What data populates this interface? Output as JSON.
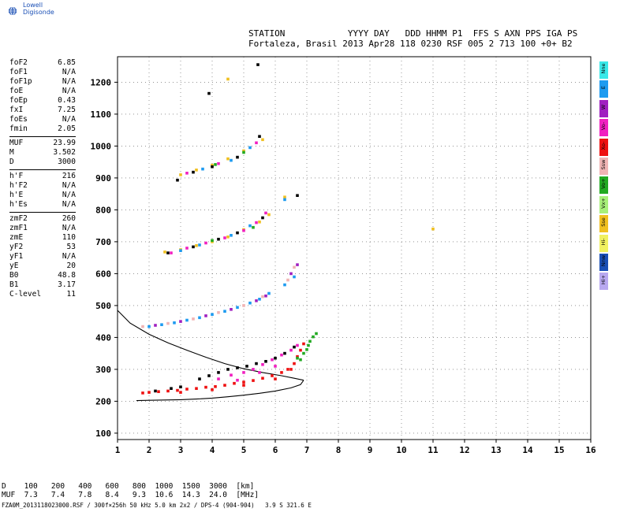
{
  "brand": {
    "name": "Lowell Digisonde",
    "logo_icon": "globe-icon"
  },
  "header": {
    "line1": "STATION            YYYY DAY   DDD HHMM P1  FFS S AXN PPS IGA PS",
    "line2": "Fortaleza, Brasil 2013 Apr28 118 0230 RSF 005 2 713 100 +0+ B2"
  },
  "params": {
    "groups": [
      [
        {
          "k": "foF2",
          "v": "6.85"
        },
        {
          "k": "foF1",
          "v": "N/A"
        },
        {
          "k": "foF1p",
          "v": "N/A"
        },
        {
          "k": "foE",
          "v": "N/A"
        },
        {
          "k": "foEp",
          "v": "0.43"
        },
        {
          "k": "fxI",
          "v": "7.25"
        },
        {
          "k": "foEs",
          "v": "N/A"
        },
        {
          "k": "fmin",
          "v": "2.05"
        }
      ],
      [
        {
          "k": "MUF",
          "v": "23.99"
        },
        {
          "k": "M",
          "v": "3.502"
        },
        {
          "k": "D",
          "v": "3000"
        }
      ],
      [
        {
          "k": "h'F",
          "v": "216"
        },
        {
          "k": "h'F2",
          "v": "N/A"
        },
        {
          "k": "h'E",
          "v": "N/A"
        },
        {
          "k": "h'Es",
          "v": "N/A"
        }
      ],
      [
        {
          "k": "zmF2",
          "v": "260"
        },
        {
          "k": "zmF1",
          "v": "N/A"
        },
        {
          "k": "zmE",
          "v": "110"
        },
        {
          "k": "yF2",
          "v": "53"
        },
        {
          "k": "yF1",
          "v": "N/A"
        },
        {
          "k": "yE",
          "v": "20"
        },
        {
          "k": "B0",
          "v": "48.8"
        },
        {
          "k": "B1",
          "v": "3.17"
        },
        {
          "k": "C-level",
          "v": "11"
        }
      ]
    ]
  },
  "legend": [
    {
      "label": "Nne",
      "color": "#39e8e8"
    },
    {
      "label": "E",
      "color": "#1d9bf0"
    },
    {
      "label": "W",
      "color": "#a020c0"
    },
    {
      "label": "Vo-",
      "color": "#f020c0"
    },
    {
      "label": "Xo-",
      "color": "#ee1111"
    },
    {
      "label": "Ssw",
      "color": "#f0b4b4"
    },
    {
      "label": "Vo+",
      "color": "#22aa22"
    },
    {
      "label": "Vx+",
      "color": "#a8f07a"
    },
    {
      "label": "Sse",
      "color": "#f0c020"
    },
    {
      "label": "Hi-",
      "color": "#f0f060"
    },
    {
      "label": "Nnw",
      "color": "#1a4fb5"
    },
    {
      "label": "Hi+",
      "color": "#b8a8f0"
    }
  ],
  "muf_table": {
    "line1": "D    100   200   400   600   800  1000  1500  3000  [km]",
    "line2": "MUF  7.3   7.4   7.8   8.4   9.3  10.6  14.3  24.0  [MHz]"
  },
  "footer": "FZA0M_2013118023000.RSF / 300f×256h 50 kHz 5.0 km 2x2 / DPS-4 (904-904)   3.9 S 321.6 E",
  "chart_data": {
    "type": "scatter",
    "xlim": [
      1,
      16
    ],
    "ylim": [
      80,
      1280
    ],
    "xticks": [
      1,
      2,
      3,
      4,
      5,
      6,
      7,
      8,
      9,
      10,
      11,
      12,
      13,
      14,
      15,
      16
    ],
    "yticks": [
      100,
      200,
      300,
      400,
      500,
      600,
      700,
      800,
      900,
      1000,
      1100,
      1200
    ],
    "grid": "dotted",
    "series": [
      {
        "color": "#ee1111",
        "points": [
          [
            1.8,
            226
          ],
          [
            2.0,
            228
          ],
          [
            2.3,
            230
          ],
          [
            2.6,
            232
          ],
          [
            2.9,
            234
          ],
          [
            3.2,
            238
          ],
          [
            3.5,
            240
          ],
          [
            3.8,
            244
          ],
          [
            4.1,
            246
          ],
          [
            4.4,
            250
          ],
          [
            4.7,
            256
          ],
          [
            5.0,
            260
          ],
          [
            5.3,
            265
          ],
          [
            5.6,
            272
          ],
          [
            5.9,
            280
          ],
          [
            6.2,
            290
          ],
          [
            6.4,
            300
          ],
          [
            6.6,
            318
          ],
          [
            6.7,
            340
          ],
          [
            6.8,
            360
          ],
          [
            6.9,
            380
          ],
          [
            3.0,
            228
          ],
          [
            4.0,
            236
          ],
          [
            5.0,
            250
          ],
          [
            6.0,
            270
          ],
          [
            6.5,
            300
          ]
        ]
      },
      {
        "color": "#f020c0",
        "points": [
          [
            4.2,
            270
          ],
          [
            4.6,
            282
          ],
          [
            5.0,
            290
          ],
          [
            5.3,
            300
          ],
          [
            5.6,
            315
          ],
          [
            5.9,
            330
          ],
          [
            6.2,
            345
          ],
          [
            6.5,
            360
          ],
          [
            6.7,
            375
          ],
          [
            4.8,
            266
          ],
          [
            5.5,
            290
          ],
          [
            6.0,
            310
          ]
        ]
      },
      {
        "color": "#000000",
        "points": [
          [
            3.6,
            270
          ],
          [
            3.9,
            280
          ],
          [
            4.2,
            290
          ],
          [
            4.5,
            300
          ],
          [
            4.8,
            305
          ],
          [
            5.1,
            310
          ],
          [
            5.4,
            318
          ],
          [
            5.7,
            325
          ],
          [
            6.0,
            335
          ],
          [
            3.0,
            245
          ],
          [
            2.7,
            240
          ],
          [
            2.2,
            232
          ],
          [
            6.3,
            350
          ],
          [
            6.6,
            370
          ]
        ]
      },
      {
        "color": "#22aa22",
        "points": [
          [
            6.9,
            350
          ],
          [
            7.0,
            362
          ],
          [
            7.05,
            375
          ],
          [
            7.1,
            388
          ],
          [
            7.2,
            402
          ],
          [
            7.3,
            412
          ],
          [
            6.7,
            335
          ],
          [
            6.8,
            330
          ]
        ]
      },
      {
        "color": "#1d9bf0",
        "points": [
          [
            2.0,
            434
          ],
          [
            2.4,
            440
          ],
          [
            2.8,
            446
          ],
          [
            3.2,
            454
          ],
          [
            3.6,
            462
          ],
          [
            4.0,
            472
          ],
          [
            4.4,
            482
          ],
          [
            4.8,
            494
          ],
          [
            5.2,
            508
          ],
          [
            5.5,
            520
          ],
          [
            5.8,
            538
          ],
          [
            6.3,
            565
          ],
          [
            6.6,
            590
          ]
        ]
      },
      {
        "color": "#a020c0",
        "points": [
          [
            2.2,
            438
          ],
          [
            3.0,
            450
          ],
          [
            3.8,
            468
          ],
          [
            4.6,
            488
          ],
          [
            5.4,
            515
          ],
          [
            5.7,
            530
          ],
          [
            6.5,
            600
          ],
          [
            6.7,
            628
          ]
        ]
      },
      {
        "color": "#f0b4b4",
        "points": [
          [
            1.8,
            434
          ],
          [
            2.6,
            444
          ],
          [
            3.4,
            458
          ],
          [
            4.2,
            478
          ],
          [
            5.0,
            500
          ],
          [
            5.6,
            528
          ],
          [
            6.4,
            580
          ],
          [
            6.6,
            620
          ]
        ]
      },
      {
        "color": "#f0c020",
        "points": [
          [
            2.5,
            668
          ],
          [
            3.0,
            675
          ],
          [
            3.5,
            688
          ],
          [
            4.0,
            700
          ],
          [
            4.5,
            715
          ],
          [
            5.0,
            738
          ],
          [
            5.5,
            762
          ],
          [
            5.8,
            785
          ],
          [
            3.0,
            910
          ],
          [
            3.5,
            925
          ],
          [
            4.0,
            940
          ],
          [
            4.5,
            960
          ],
          [
            5.0,
            985
          ],
          [
            5.6,
            1020
          ],
          [
            4.5,
            1210
          ],
          [
            11.0,
            740
          ],
          [
            6.3,
            840
          ]
        ]
      },
      {
        "color": "#f020c0",
        "points": [
          [
            2.7,
            665
          ],
          [
            3.2,
            680
          ],
          [
            3.8,
            696
          ],
          [
            4.4,
            712
          ],
          [
            5.0,
            735
          ],
          [
            5.4,
            760
          ],
          [
            5.7,
            790
          ],
          [
            3.2,
            915
          ],
          [
            4.2,
            945
          ],
          [
            5.4,
            1010
          ]
        ]
      },
      {
        "color": "#000000",
        "points": [
          [
            2.6,
            665
          ],
          [
            3.4,
            684
          ],
          [
            4.2,
            708
          ],
          [
            4.8,
            728
          ],
          [
            5.6,
            775
          ],
          [
            2.9,
            893
          ],
          [
            3.4,
            918
          ],
          [
            4.0,
            935
          ],
          [
            4.8,
            965
          ],
          [
            5.5,
            1030
          ],
          [
            3.9,
            1165
          ],
          [
            5.45,
            1255
          ],
          [
            6.7,
            845
          ]
        ]
      },
      {
        "color": "#1d9bf0",
        "points": [
          [
            3.0,
            672
          ],
          [
            3.6,
            690
          ],
          [
            4.6,
            720
          ],
          [
            5.2,
            750
          ],
          [
            3.7,
            928
          ],
          [
            4.6,
            955
          ],
          [
            5.2,
            995
          ],
          [
            6.3,
            832
          ]
        ]
      },
      {
        "color": "#22aa22",
        "points": [
          [
            4.0,
            704
          ],
          [
            5.3,
            745
          ],
          [
            4.1,
            942
          ],
          [
            5.0,
            980
          ]
        ]
      }
    ],
    "curves": [
      {
        "name": "",
        "points": [
          [
            1.0,
            485
          ],
          [
            1.4,
            445
          ],
          [
            2.0,
            410
          ],
          [
            2.6,
            383
          ],
          [
            3.2,
            360
          ],
          [
            3.8,
            338
          ],
          [
            4.4,
            318
          ],
          [
            5.0,
            302
          ],
          [
            5.6,
            290
          ],
          [
            6.2,
            280
          ],
          [
            6.6,
            272
          ],
          [
            6.9,
            266
          ]
        ]
      },
      {
        "name": "",
        "points": [
          [
            6.9,
            266
          ],
          [
            6.8,
            252
          ],
          [
            6.5,
            242
          ],
          [
            6.0,
            232
          ],
          [
            5.5,
            225
          ],
          [
            5.0,
            219
          ],
          [
            4.5,
            214
          ],
          [
            4.0,
            210
          ],
          [
            3.5,
            207
          ],
          [
            3.0,
            205
          ],
          [
            2.5,
            204
          ],
          [
            2.0,
            203
          ],
          [
            1.6,
            202
          ]
        ]
      }
    ]
  }
}
